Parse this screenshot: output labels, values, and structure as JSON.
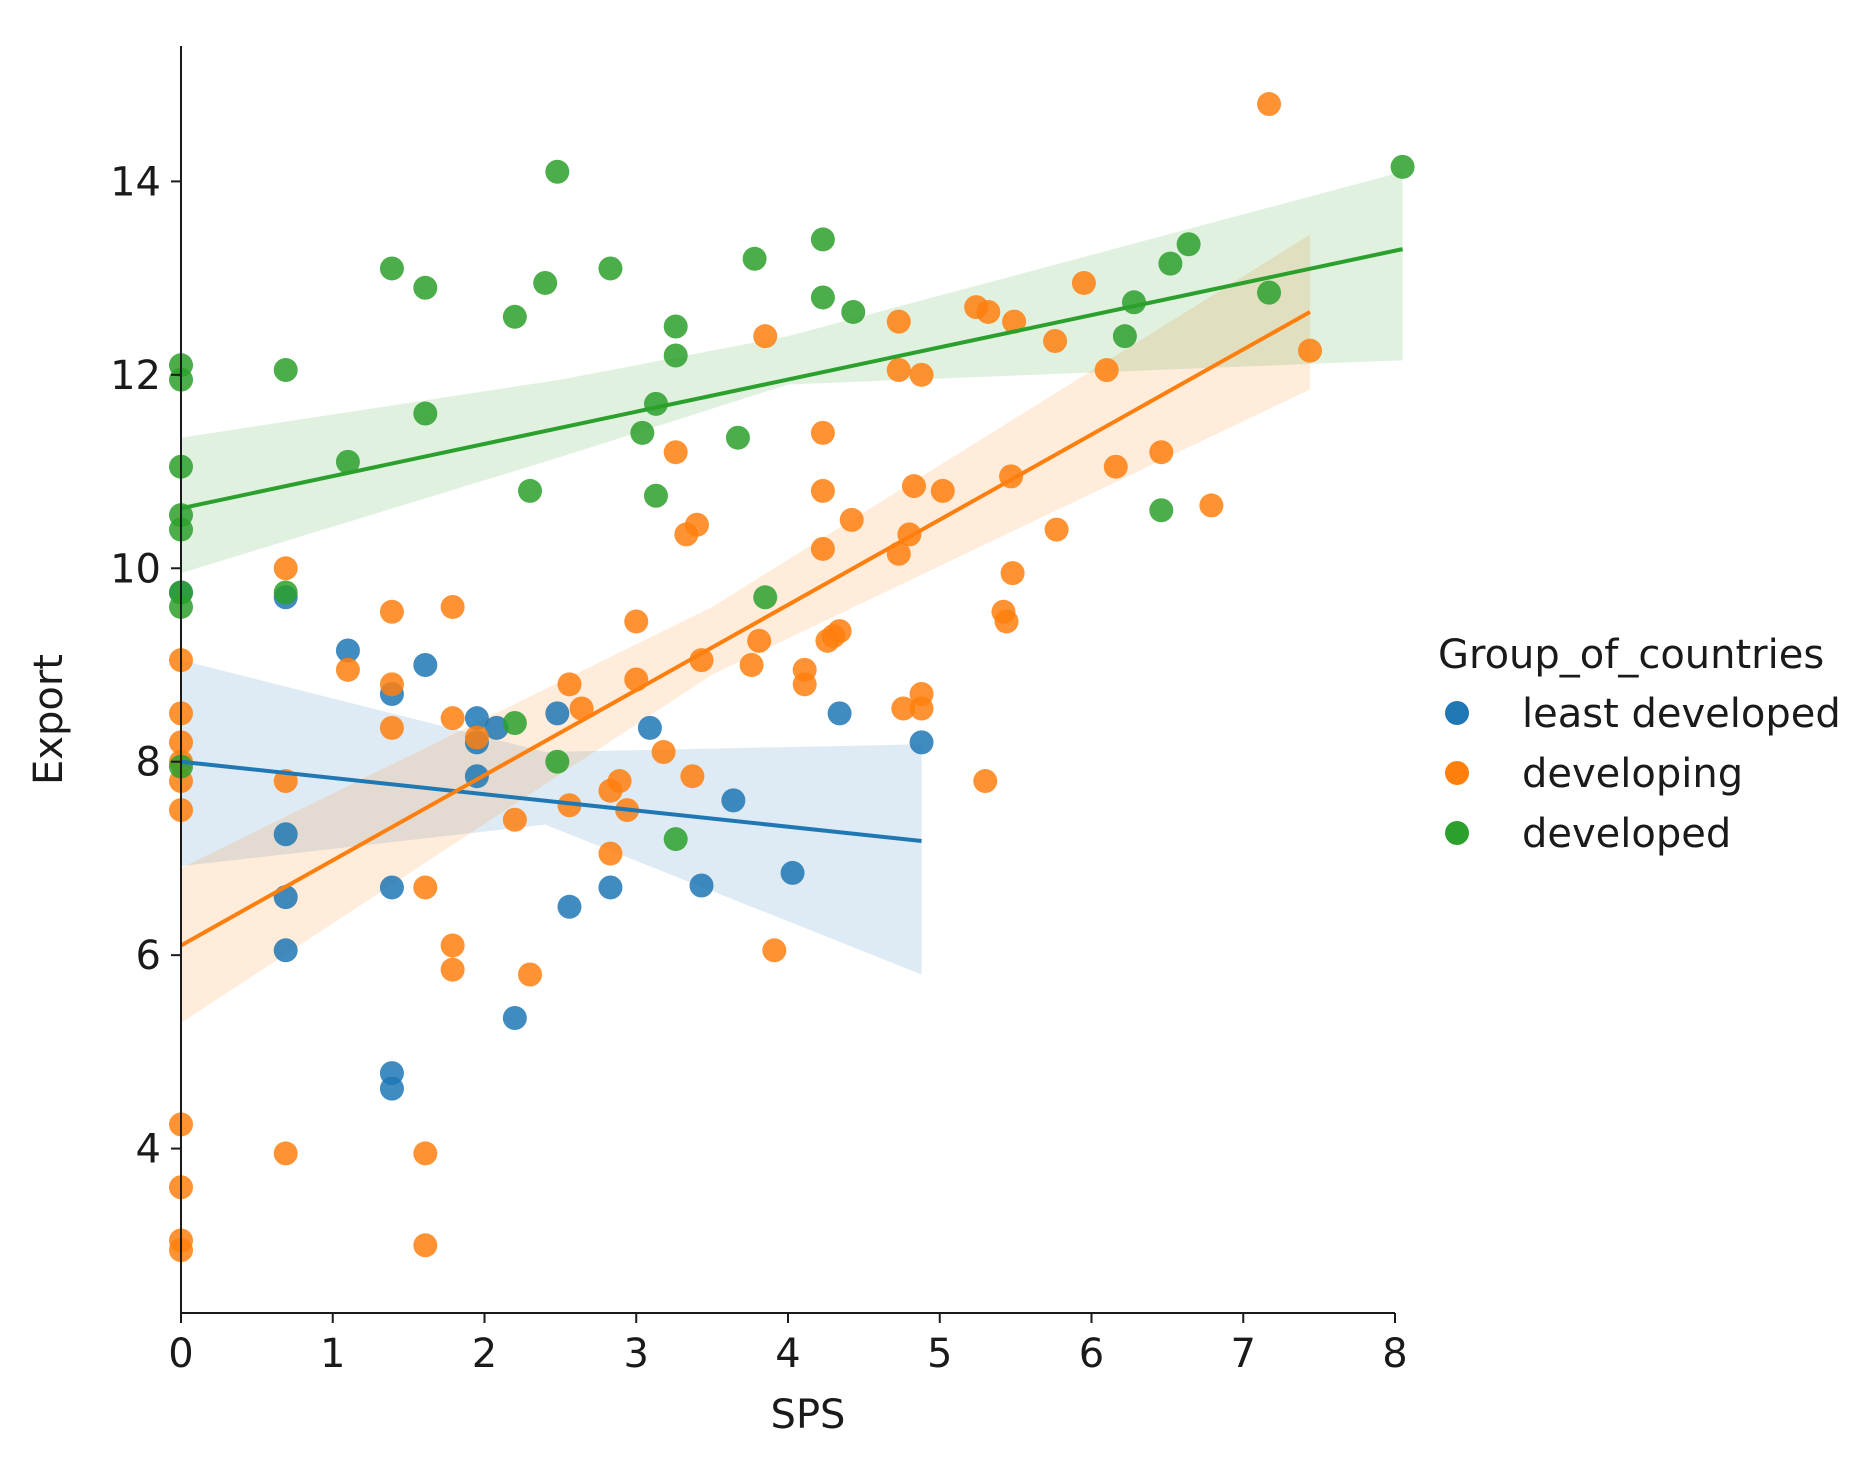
{
  "chart_data": {
    "type": "scatter",
    "title": "",
    "xlabel": "SPS",
    "ylabel": "Export",
    "xlim": [
      0,
      8
    ],
    "ylim": [
      2.3,
      15.4
    ],
    "x_ticks": [
      0,
      1,
      2,
      3,
      4,
      5,
      6,
      7,
      8
    ],
    "y_ticks": [
      4,
      6,
      8,
      10,
      12,
      14
    ],
    "grid": false,
    "legend": {
      "title": "Group_of_countries",
      "placement": "right"
    },
    "series": [
      {
        "name": "least developed",
        "color": "#1f77b4",
        "points": [
          [
            0,
            9.75
          ],
          [
            0.69,
            9.7
          ],
          [
            0.69,
            7.25
          ],
          [
            0.69,
            6.6
          ],
          [
            0.69,
            6.05
          ],
          [
            1.1,
            9.15
          ],
          [
            1.39,
            8.7
          ],
          [
            1.39,
            6.7
          ],
          [
            1.39,
            4.78
          ],
          [
            1.39,
            4.62
          ],
          [
            1.61,
            9.0
          ],
          [
            1.95,
            8.45
          ],
          [
            1.95,
            8.2
          ],
          [
            1.95,
            7.85
          ],
          [
            2.08,
            8.35
          ],
          [
            2.2,
            5.35
          ],
          [
            2.48,
            8.5
          ],
          [
            2.56,
            6.5
          ],
          [
            2.83,
            6.7
          ],
          [
            3.09,
            8.35
          ],
          [
            3.43,
            6.72
          ],
          [
            3.64,
            7.6
          ],
          [
            4.03,
            6.85
          ],
          [
            4.34,
            8.5
          ],
          [
            4.88,
            8.2
          ]
        ],
        "fit": {
          "x_range": [
            0,
            4.88
          ],
          "y_start": 8.0,
          "y_end": 7.18
        },
        "ci_upper": [
          [
            0,
            9.05
          ],
          [
            2.4,
            8.1
          ],
          [
            4.88,
            8.18
          ]
        ],
        "ci_lower": [
          [
            0,
            6.92
          ],
          [
            2.4,
            7.35
          ],
          [
            4.88,
            5.8
          ]
        ]
      },
      {
        "name": "developing",
        "color": "#ff7f0e",
        "points": [
          [
            0,
            9.05
          ],
          [
            0,
            8.5
          ],
          [
            0,
            8.2
          ],
          [
            0,
            8.0
          ],
          [
            0,
            7.8
          ],
          [
            0,
            7.5
          ],
          [
            0,
            4.25
          ],
          [
            0,
            3.6
          ],
          [
            0,
            3.05
          ],
          [
            0,
            2.95
          ],
          [
            0.69,
            10.0
          ],
          [
            0.69,
            7.8
          ],
          [
            0.69,
            3.95
          ],
          [
            1.1,
            8.95
          ],
          [
            1.39,
            9.55
          ],
          [
            1.39,
            8.8
          ],
          [
            1.39,
            8.35
          ],
          [
            1.61,
            6.7
          ],
          [
            1.61,
            3.95
          ],
          [
            1.61,
            3.0
          ],
          [
            1.79,
            9.6
          ],
          [
            1.79,
            8.45
          ],
          [
            1.79,
            6.1
          ],
          [
            1.79,
            5.85
          ],
          [
            1.95,
            8.25
          ],
          [
            2.2,
            7.4
          ],
          [
            2.3,
            5.8
          ],
          [
            2.56,
            8.8
          ],
          [
            2.56,
            7.55
          ],
          [
            2.64,
            8.55
          ],
          [
            2.83,
            7.7
          ],
          [
            2.83,
            7.05
          ],
          [
            2.89,
            7.8
          ],
          [
            2.94,
            7.5
          ],
          [
            3.0,
            9.45
          ],
          [
            3.0,
            8.85
          ],
          [
            3.18,
            8.1
          ],
          [
            3.26,
            11.2
          ],
          [
            3.33,
            10.35
          ],
          [
            3.37,
            7.85
          ],
          [
            3.4,
            10.45
          ],
          [
            3.43,
            9.05
          ],
          [
            3.76,
            9.0
          ],
          [
            3.81,
            9.25
          ],
          [
            3.85,
            12.4
          ],
          [
            3.91,
            6.05
          ],
          [
            4.11,
            8.95
          ],
          [
            4.11,
            8.8
          ],
          [
            4.23,
            11.4
          ],
          [
            4.23,
            10.8
          ],
          [
            4.23,
            10.2
          ],
          [
            4.26,
            9.25
          ],
          [
            4.3,
            9.3
          ],
          [
            4.34,
            9.35
          ],
          [
            4.42,
            10.5
          ],
          [
            4.73,
            12.55
          ],
          [
            4.73,
            12.05
          ],
          [
            4.73,
            10.15
          ],
          [
            4.76,
            8.55
          ],
          [
            4.8,
            10.35
          ],
          [
            4.83,
            10.85
          ],
          [
            4.88,
            12.0
          ],
          [
            4.88,
            8.7
          ],
          [
            4.88,
            8.55
          ],
          [
            5.02,
            10.8
          ],
          [
            5.24,
            12.7
          ],
          [
            5.32,
            12.65
          ],
          [
            5.3,
            7.8
          ],
          [
            5.42,
            9.55
          ],
          [
            5.44,
            9.45
          ],
          [
            5.47,
            10.95
          ],
          [
            5.49,
            12.55
          ],
          [
            5.48,
            9.95
          ],
          [
            5.76,
            12.35
          ],
          [
            5.77,
            10.4
          ],
          [
            5.95,
            12.95
          ],
          [
            6.1,
            12.05
          ],
          [
            6.16,
            11.05
          ],
          [
            6.46,
            11.2
          ],
          [
            6.79,
            10.65
          ],
          [
            7.17,
            14.8
          ],
          [
            7.44,
            12.25
          ]
        ],
        "fit": {
          "x_range": [
            0,
            7.44
          ],
          "y_start": 6.1,
          "y_end": 12.65
        },
        "ci_upper": [
          [
            0,
            6.9
          ],
          [
            3.5,
            9.6
          ],
          [
            7.44,
            13.45
          ]
        ],
        "ci_lower": [
          [
            0,
            5.3
          ],
          [
            3.5,
            8.9
          ],
          [
            7.44,
            11.85
          ]
        ]
      },
      {
        "name": "developed",
        "color": "#2ca02c",
        "points": [
          [
            0,
            12.1
          ],
          [
            0,
            11.95
          ],
          [
            0,
            11.05
          ],
          [
            0,
            10.55
          ],
          [
            0,
            10.4
          ],
          [
            0,
            9.75
          ],
          [
            0,
            9.6
          ],
          [
            0,
            7.95
          ],
          [
            0.69,
            12.05
          ],
          [
            0.69,
            9.75
          ],
          [
            1.1,
            11.1
          ],
          [
            1.39,
            13.1
          ],
          [
            1.61,
            12.9
          ],
          [
            1.61,
            11.6
          ],
          [
            2.2,
            12.6
          ],
          [
            2.2,
            8.4
          ],
          [
            2.3,
            10.8
          ],
          [
            2.4,
            12.95
          ],
          [
            2.48,
            14.1
          ],
          [
            2.48,
            8.0
          ],
          [
            2.83,
            13.1
          ],
          [
            3.04,
            11.4
          ],
          [
            3.13,
            11.7
          ],
          [
            3.13,
            10.75
          ],
          [
            3.26,
            12.5
          ],
          [
            3.26,
            12.2
          ],
          [
            3.26,
            7.2
          ],
          [
            3.67,
            11.35
          ],
          [
            3.78,
            13.2
          ],
          [
            3.85,
            9.7
          ],
          [
            4.23,
            13.4
          ],
          [
            4.23,
            12.8
          ],
          [
            4.43,
            12.65
          ],
          [
            6.22,
            12.4
          ],
          [
            6.28,
            12.75
          ],
          [
            6.46,
            10.6
          ],
          [
            6.52,
            13.15
          ],
          [
            6.64,
            13.35
          ],
          [
            7.17,
            12.85
          ],
          [
            8.05,
            14.15
          ]
        ],
        "fit": {
          "x_range": [
            0,
            8.05
          ],
          "y_start": 10.62,
          "y_end": 13.3
        },
        "ci_upper": [
          [
            0,
            11.35
          ],
          [
            2.5,
            11.95
          ],
          [
            4.0,
            12.4
          ],
          [
            8.05,
            14.1
          ]
        ],
        "ci_lower": [
          [
            0,
            9.95
          ],
          [
            2.5,
            11.15
          ],
          [
            4.0,
            11.9
          ],
          [
            8.05,
            12.15
          ]
        ]
      }
    ]
  }
}
